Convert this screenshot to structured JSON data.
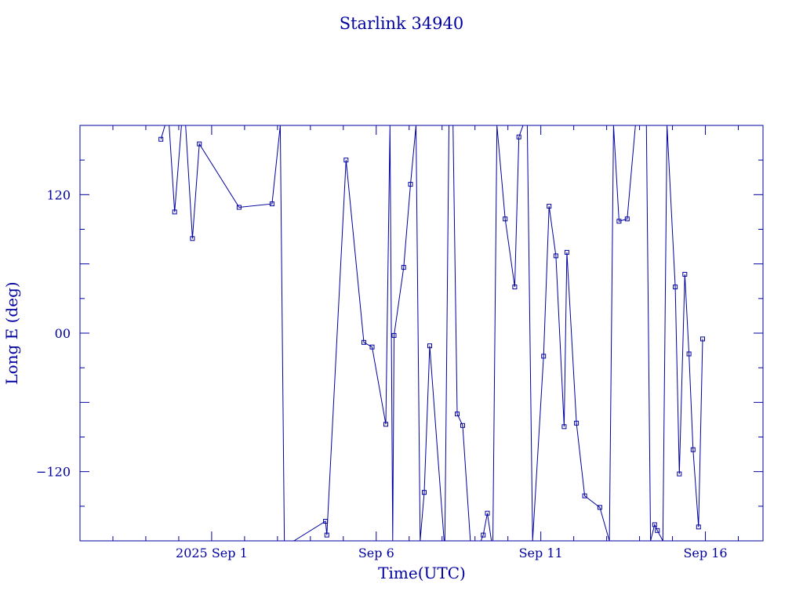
{
  "chart_data": {
    "type": "line",
    "title": "Starlink 34940",
    "xlabel": "Time(UTC)",
    "ylabel": "Long E (deg)",
    "x_unit": "days",
    "xlim": [
      "2025-08-28T00:00",
      "2025-09-17T18:00"
    ],
    "ylim": [
      -180,
      180
    ],
    "x_tick_labels": [
      {
        "label": "2025 Sep  1",
        "x": "2025-09-01T00:00"
      },
      {
        "label": "Sep  6",
        "x": "2025-09-06T00:00"
      },
      {
        "label": "Sep 11",
        "x": "2025-09-11T00:00"
      },
      {
        "label": "Sep 16",
        "x": "2025-09-16T00:00"
      }
    ],
    "y_tick_labels": [
      {
        "label": "120",
        "y": 120
      },
      {
        "label": "00",
        "y": 0
      },
      {
        "label": "−120",
        "y": -120
      }
    ],
    "grid": false,
    "color": "#0000a0",
    "marker": "square",
    "series": [
      {
        "points": [
          [
            "2025-08-30T11:00",
            168
          ],
          [
            "2025-08-30T14:00",
            180
          ],
          [
            "2025-08-30T17:00",
            180
          ],
          [
            "2025-08-30T21:00",
            105
          ],
          [
            "2025-08-31T02:00",
            180
          ],
          [
            "2025-08-31T05:00",
            180
          ],
          [
            "2025-08-31T10:00",
            82
          ],
          [
            "2025-08-31T15:00",
            164
          ],
          [
            "2025-09-01T20:00",
            109
          ],
          [
            "2025-09-02T20:00",
            112
          ],
          [
            "2025-09-03T02:00",
            180
          ],
          [
            "2025-09-03T05:00",
            -180
          ],
          [
            "2025-09-03T12:00",
            -180
          ],
          [
            "2025-09-04T11:00",
            -163
          ],
          [
            "2025-09-04T12:00",
            -175
          ],
          [
            "2025-09-05T02:00",
            150
          ],
          [
            "2025-09-05T15:00",
            -8
          ],
          [
            "2025-09-05T21:00",
            -12
          ],
          [
            "2025-09-06T07:00",
            -79
          ],
          [
            "2025-09-06T10:00",
            180
          ],
          [
            "2025-09-06T12:00",
            -180
          ],
          [
            "2025-09-06T13:00",
            -2
          ],
          [
            "2025-09-06T20:00",
            57
          ],
          [
            "2025-09-07T01:00",
            129
          ],
          [
            "2025-09-07T05:00",
            180
          ],
          [
            "2025-09-07T08:00",
            -180
          ],
          [
            "2025-09-07T11:00",
            -138
          ],
          [
            "2025-09-07T15:00",
            -11
          ],
          [
            "2025-09-08T02:00",
            -188
          ],
          [
            "2025-09-08T05:00",
            180
          ],
          [
            "2025-09-08T08:00",
            180
          ],
          [
            "2025-09-08T11:00",
            -70
          ],
          [
            "2025-09-08T15:00",
            -80
          ],
          [
            "2025-09-08T21:00",
            -187
          ],
          [
            "2025-09-09T02:00",
            -187
          ],
          [
            "2025-09-09T06:00",
            -175
          ],
          [
            "2025-09-09T09:00",
            -156
          ],
          [
            "2025-09-09T13:00",
            -188
          ],
          [
            "2025-09-09T16:00",
            180
          ],
          [
            "2025-09-09T22:00",
            99
          ],
          [
            "2025-09-10T05:00",
            40
          ],
          [
            "2025-09-10T08:00",
            170
          ],
          [
            "2025-09-10T14:00",
            190
          ],
          [
            "2025-09-10T18:00",
            -180
          ],
          [
            "2025-09-11T02:00",
            -20
          ],
          [
            "2025-09-11T06:00",
            110
          ],
          [
            "2025-09-11T11:00",
            67
          ],
          [
            "2025-09-11T17:00",
            -81
          ],
          [
            "2025-09-11T19:00",
            70
          ],
          [
            "2025-09-12T02:00",
            -78
          ],
          [
            "2025-09-12T08:00",
            -141
          ],
          [
            "2025-09-12T19:00",
            -151
          ],
          [
            "2025-09-13T02:00",
            -180
          ],
          [
            "2025-09-13T05:00",
            180
          ],
          [
            "2025-09-13T09:00",
            97
          ],
          [
            "2025-09-13T15:00",
            99
          ],
          [
            "2025-09-13T21:00",
            180
          ],
          [
            "2025-09-14T05:00",
            180
          ],
          [
            "2025-09-14T08:00",
            -180
          ],
          [
            "2025-09-14T11:00",
            -166
          ],
          [
            "2025-09-14T13:00",
            -171
          ],
          [
            "2025-09-14T17:00",
            -180
          ],
          [
            "2025-09-14T20:00",
            180
          ],
          [
            "2025-09-15T02:00",
            40
          ],
          [
            "2025-09-15T05:00",
            -122
          ],
          [
            "2025-09-15T09:00",
            51
          ],
          [
            "2025-09-15T12:00",
            -18
          ],
          [
            "2025-09-15T15:00",
            -101
          ],
          [
            "2025-09-15T19:00",
            -168
          ],
          [
            "2025-09-15T22:00",
            -5
          ]
        ]
      }
    ]
  }
}
